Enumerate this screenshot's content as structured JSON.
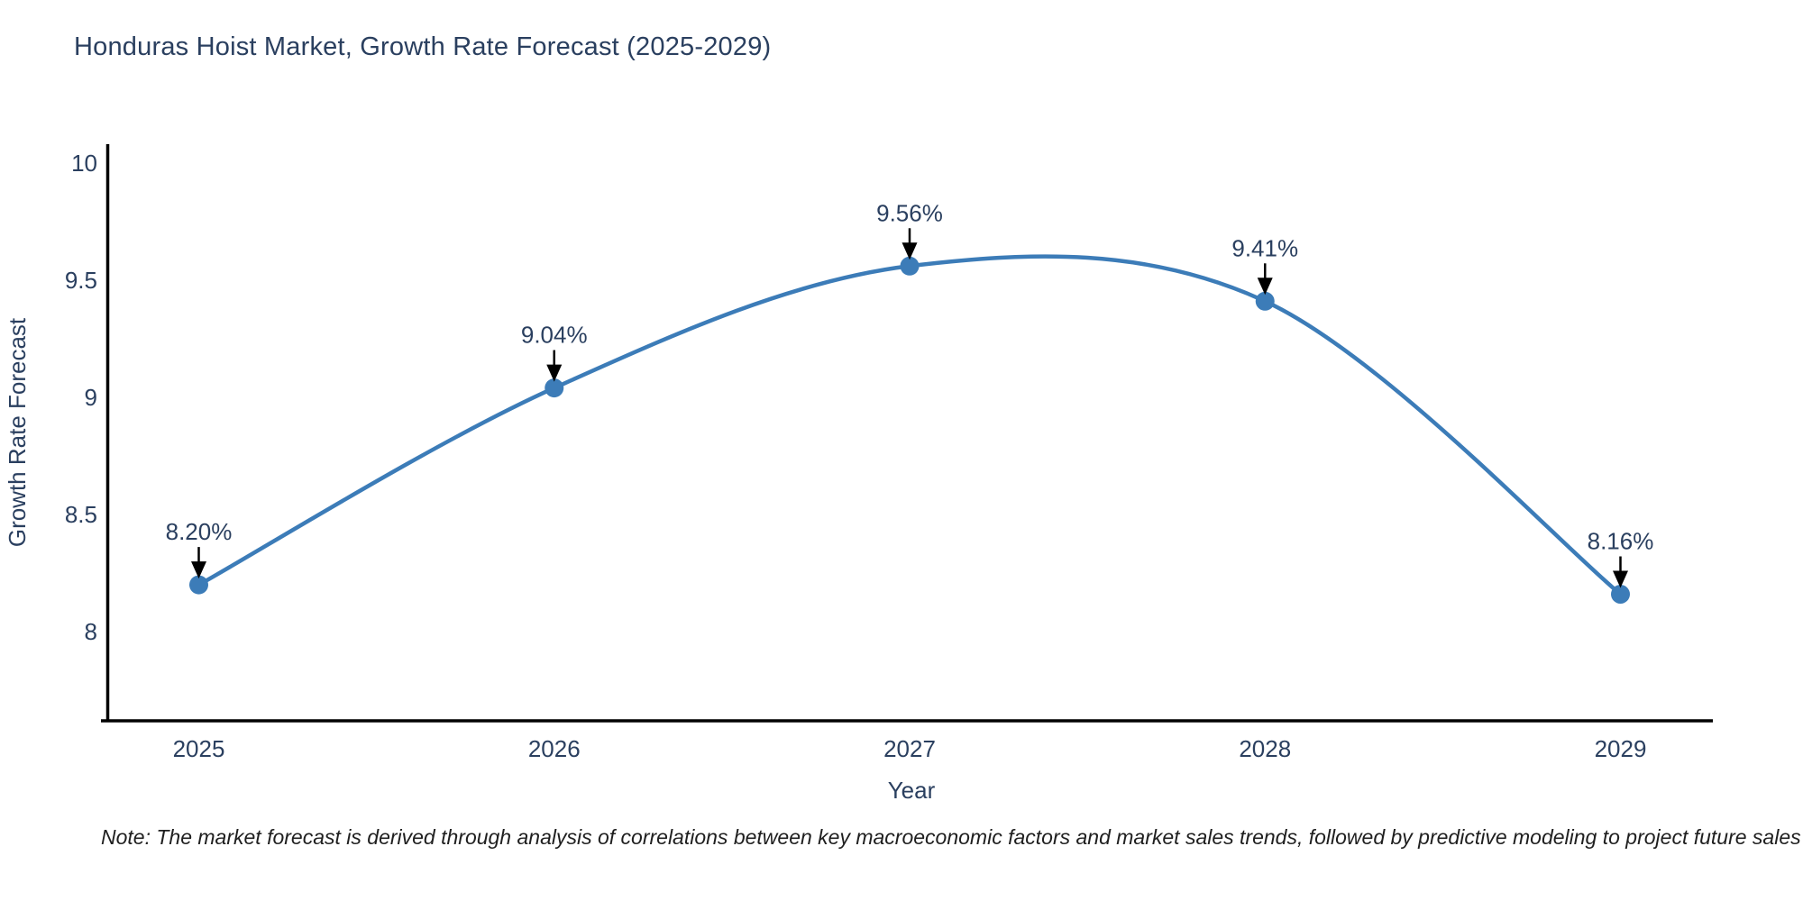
{
  "colors": {
    "background": "#ffffff",
    "title_text": "#2a3f5f",
    "tick_text": "#2a3f5f",
    "axis_line": "#000000",
    "line": "#3c7cb8",
    "marker": "#3c7cb8",
    "annotation_text": "#2a3f5f",
    "annotation_arrow": "#000000",
    "note_text": "#1f1f1f"
  },
  "note": {
    "text": "Note: The market forecast is derived through analysis of correlations between key macroeconomic factors and market sales trends, followed by predictive modeling to project future sales"
  },
  "chart_data": {
    "type": "line",
    "title": "Honduras Hoist Market, Growth Rate Forecast (2025-2029)",
    "xlabel": "Year",
    "ylabel": "Growth Rate Forecast",
    "x": [
      2025,
      2026,
      2027,
      2028,
      2029
    ],
    "y": [
      8.2,
      9.04,
      9.56,
      9.41,
      8.16
    ],
    "point_labels": [
      "8.20%",
      "9.04%",
      "9.56%",
      "9.41%",
      "8.16%"
    ],
    "x_tick_labels": [
      "2025",
      "2026",
      "2027",
      "2028",
      "2029"
    ],
    "yticks": [
      8,
      8.5,
      9,
      9.5,
      10
    ],
    "y_tick_labels": [
      "8",
      "8.5",
      "9",
      "9.5",
      "10"
    ],
    "xlim": [
      2024.74,
      2029.26
    ],
    "ylim": [
      7.62,
      10.08
    ],
    "line_shape": "spline",
    "grid": false,
    "legend": "none"
  }
}
